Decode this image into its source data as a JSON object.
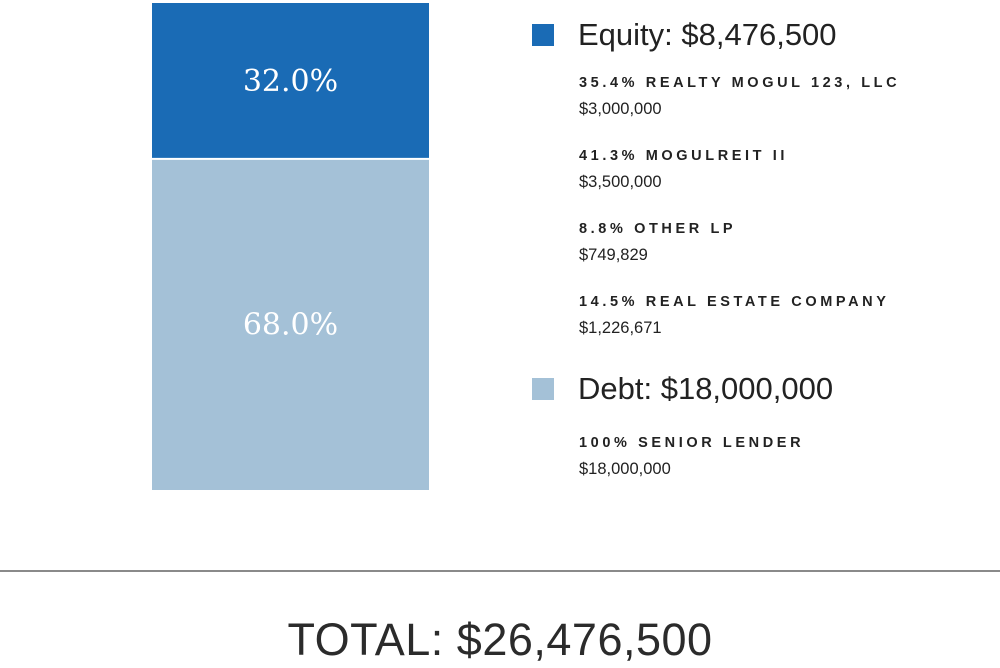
{
  "chart_data": {
    "type": "bar",
    "stacked": true,
    "categories": [
      ""
    ],
    "series": [
      {
        "name": "Equity: $8,476,500",
        "values": [
          32.0
        ],
        "label": "32.0%",
        "color": "#1a6bb5"
      },
      {
        "name": "Debt: $18,000,000",
        "values": [
          68.0
        ],
        "label": "68.0%",
        "color": "#a4c1d7"
      }
    ],
    "ylim": [
      0,
      100
    ],
    "grid": false,
    "legend_placement": "right"
  },
  "legend": {
    "groups": [
      {
        "title": "Equity: $8,476,500",
        "color": "#1a6bb5",
        "items": [
          {
            "name": "35.4% REALTY MOGUL 123, LLC",
            "amount": "$3,000,000"
          },
          {
            "name": "41.3% MOGULREIT II",
            "amount": "$3,500,000"
          },
          {
            "name": "8.8% OTHER LP",
            "amount": "$749,829"
          },
          {
            "name": "14.5% REAL ESTATE COMPANY",
            "amount": "$1,226,671"
          }
        ]
      },
      {
        "title": "Debt: $18,000,000",
        "color": "#a4c1d7",
        "items": [
          {
            "name": "100% SENIOR LENDER",
            "amount": "$18,000,000"
          }
        ]
      }
    ]
  },
  "total": "TOTAL: $26,476,500"
}
